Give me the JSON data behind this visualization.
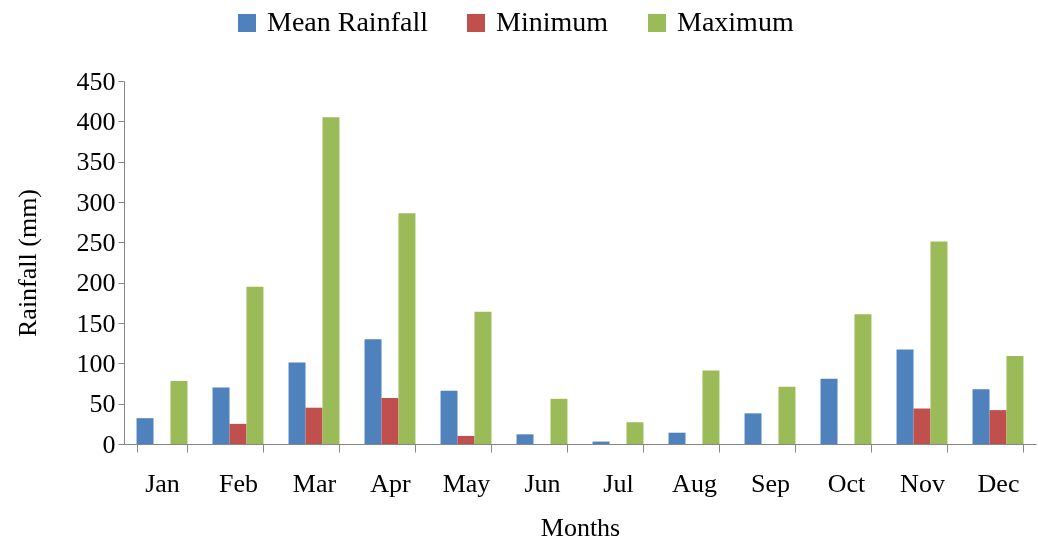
{
  "chart_data": {
    "type": "bar",
    "xlabel": "Months",
    "ylabel": "Rainfall (mm)",
    "categories": [
      "Jan",
      "Feb",
      "Mar",
      "Apr",
      "May",
      "Jun",
      "Jul",
      "Aug",
      "Sep",
      "Oct",
      "Nov",
      "Dec"
    ],
    "series": [
      {
        "name": "Mean Rainfall",
        "color": "#4f81bd",
        "values": [
          32,
          70,
          101,
          130,
          66,
          12,
          3,
          14,
          38,
          81,
          117,
          68
        ]
      },
      {
        "name": "Minimum",
        "color": "#c0504d",
        "values": [
          0,
          25,
          45,
          57,
          10,
          0,
          0,
          0,
          0,
          0,
          44,
          42
        ]
      },
      {
        "name": "Maximum",
        "color": "#9bbb59",
        "values": [
          78,
          195,
          405,
          286,
          164,
          56,
          27,
          91,
          71,
          161,
          251,
          109
        ]
      }
    ],
    "ylim": [
      0,
      450
    ],
    "yticks": [
      0,
      50,
      100,
      150,
      200,
      250,
      300,
      350,
      400,
      450
    ],
    "grid": false,
    "legend": "top"
  }
}
